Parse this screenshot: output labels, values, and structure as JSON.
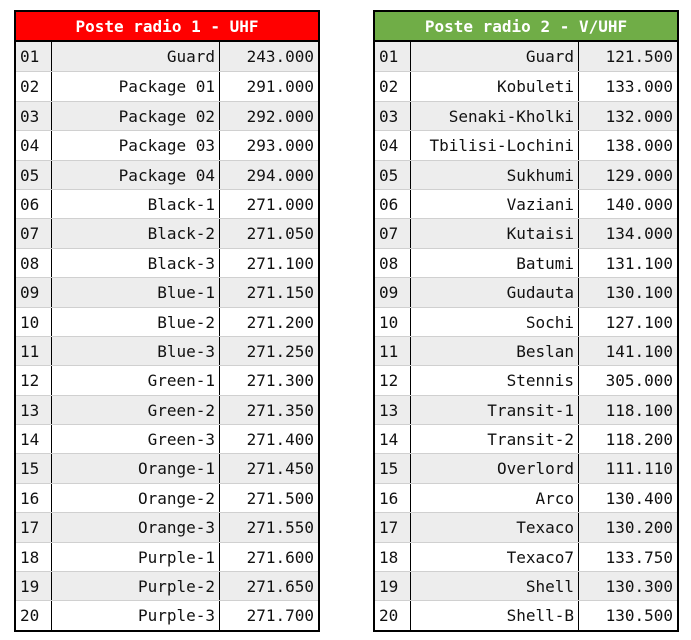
{
  "radio1": {
    "title": "Poste radio 1 - UHF",
    "header_color": "#ff0000",
    "rows": [
      {
        "num": "01",
        "name": "Guard",
        "freq": "243.000"
      },
      {
        "num": "02",
        "name": "Package 01",
        "freq": "291.000"
      },
      {
        "num": "03",
        "name": "Package 02",
        "freq": "292.000"
      },
      {
        "num": "04",
        "name": "Package 03",
        "freq": "293.000"
      },
      {
        "num": "05",
        "name": "Package 04",
        "freq": "294.000"
      },
      {
        "num": "06",
        "name": "Black-1",
        "freq": "271.000"
      },
      {
        "num": "07",
        "name": "Black-2",
        "freq": "271.050"
      },
      {
        "num": "08",
        "name": "Black-3",
        "freq": "271.100"
      },
      {
        "num": "09",
        "name": "Blue-1",
        "freq": "271.150"
      },
      {
        "num": "10",
        "name": "Blue-2",
        "freq": "271.200"
      },
      {
        "num": "11",
        "name": "Blue-3",
        "freq": "271.250"
      },
      {
        "num": "12",
        "name": "Green-1",
        "freq": "271.300"
      },
      {
        "num": "13",
        "name": "Green-2",
        "freq": "271.350"
      },
      {
        "num": "14",
        "name": "Green-3",
        "freq": "271.400"
      },
      {
        "num": "15",
        "name": "Orange-1",
        "freq": "271.450"
      },
      {
        "num": "16",
        "name": "Orange-2",
        "freq": "271.500"
      },
      {
        "num": "17",
        "name": "Orange-3",
        "freq": "271.550"
      },
      {
        "num": "18",
        "name": "Purple-1",
        "freq": "271.600"
      },
      {
        "num": "19",
        "name": "Purple-2",
        "freq": "271.650"
      },
      {
        "num": "20",
        "name": "Purple-3",
        "freq": "271.700"
      }
    ]
  },
  "radio2": {
    "title": "Poste radio 2 - V/UHF",
    "header_color": "#70ad47",
    "rows": [
      {
        "num": "01",
        "name": "Guard",
        "freq": "121.500"
      },
      {
        "num": "02",
        "name": "Kobuleti",
        "freq": "133.000"
      },
      {
        "num": "03",
        "name": "Senaki-Kholki",
        "freq": "132.000"
      },
      {
        "num": "04",
        "name": "Tbilisi-Lochini",
        "freq": "138.000"
      },
      {
        "num": "05",
        "name": "Sukhumi",
        "freq": "129.000"
      },
      {
        "num": "06",
        "name": "Vaziani",
        "freq": "140.000"
      },
      {
        "num": "07",
        "name": "Kutaisi",
        "freq": "134.000"
      },
      {
        "num": "08",
        "name": "Batumi",
        "freq": "131.100"
      },
      {
        "num": "09",
        "name": "Gudauta",
        "freq": "130.100"
      },
      {
        "num": "10",
        "name": "Sochi",
        "freq": "127.100"
      },
      {
        "num": "11",
        "name": "Beslan",
        "freq": "141.100"
      },
      {
        "num": "12",
        "name": "Stennis",
        "freq": "305.000"
      },
      {
        "num": "13",
        "name": "Transit-1",
        "freq": "118.100"
      },
      {
        "num": "14",
        "name": "Transit-2",
        "freq": "118.200"
      },
      {
        "num": "15",
        "name": "Overlord",
        "freq": "111.110"
      },
      {
        "num": "16",
        "name": "Arco",
        "freq": "130.400"
      },
      {
        "num": "17",
        "name": "Texaco",
        "freq": "130.200"
      },
      {
        "num": "18",
        "name": "Texaco7",
        "freq": "133.750"
      },
      {
        "num": "19",
        "name": "Shell",
        "freq": "130.300"
      },
      {
        "num": "20",
        "name": "Shell-B",
        "freq": "130.500"
      }
    ]
  }
}
